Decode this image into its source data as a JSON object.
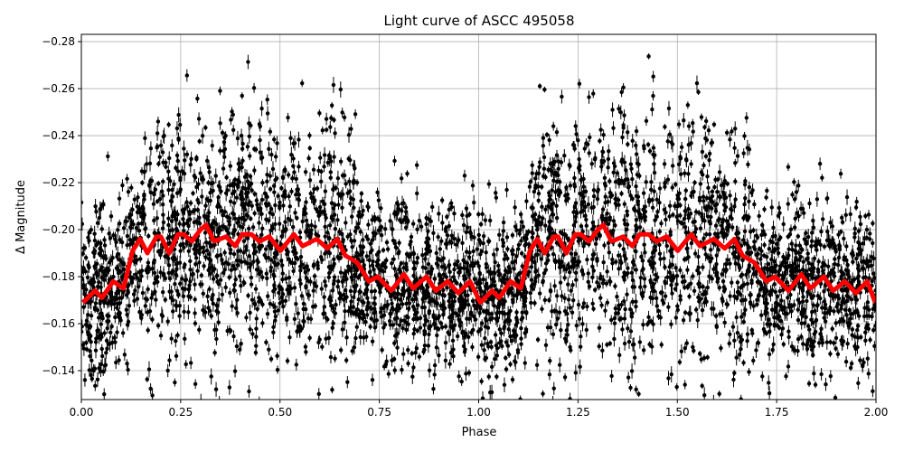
{
  "chart_data": {
    "type": "scatter",
    "title": "Light curve of ASCC 495058",
    "xlabel": "Phase",
    "ylabel": "Δ Magnitude",
    "xlim": [
      0.0,
      2.0
    ],
    "ylim": [
      -0.1277,
      -0.2831
    ],
    "y_inverted": true,
    "grid": true,
    "xticks": [
      "0.00",
      "0.25",
      "0.50",
      "0.75",
      "1.00",
      "1.25",
      "1.50",
      "1.75",
      "2.00"
    ],
    "xtick_values": [
      0,
      0.25,
      0.5,
      0.75,
      1,
      1.25,
      1.5,
      1.75,
      2
    ],
    "yticks": [
      "−0.28",
      "−0.26",
      "−0.24",
      "−0.22",
      "−0.20",
      "−0.18",
      "−0.16",
      "−0.14"
    ],
    "ytick_values": [
      -0.28,
      -0.26,
      -0.24,
      -0.22,
      -0.2,
      -0.18,
      -0.16,
      -0.14
    ],
    "scatter_color": "#000000",
    "series": [
      {
        "type": "line",
        "color": "#ff0000",
        "x": [
          0.004,
          0.034,
          0.052,
          0.08,
          0.106,
          0.129,
          0.148,
          0.166,
          0.189,
          0.2,
          0.221,
          0.243,
          0.257,
          0.278,
          0.3,
          0.314,
          0.334,
          0.364,
          0.387,
          0.405,
          0.428,
          0.448,
          0.473,
          0.501,
          0.535,
          0.557,
          0.592,
          0.619,
          0.644,
          0.664,
          0.694,
          0.724,
          0.746,
          0.78,
          0.812,
          0.835,
          0.869,
          0.892,
          0.922,
          0.949,
          0.978,
          1.004,
          1.034,
          1.052,
          1.08,
          1.106,
          1.129,
          1.148,
          1.166,
          1.189,
          1.2,
          1.221,
          1.243,
          1.257,
          1.278,
          1.3,
          1.314,
          1.334,
          1.364,
          1.387,
          1.405,
          1.428,
          1.448,
          1.473,
          1.501,
          1.535,
          1.557,
          1.592,
          1.619,
          1.644,
          1.664,
          1.694,
          1.724,
          1.746,
          1.78,
          1.812,
          1.835,
          1.869,
          1.892,
          1.922,
          1.949,
          1.978,
          1.998
        ],
        "y": [
          -0.169,
          -0.174,
          -0.171,
          -0.178,
          -0.175,
          -0.191,
          -0.196,
          -0.19,
          -0.197,
          -0.197,
          -0.19,
          -0.198,
          -0.198,
          -0.195,
          -0.2,
          -0.202,
          -0.195,
          -0.197,
          -0.193,
          -0.198,
          -0.198,
          -0.195,
          -0.197,
          -0.191,
          -0.198,
          -0.193,
          -0.196,
          -0.192,
          -0.196,
          -0.189,
          -0.186,
          -0.178,
          -0.18,
          -0.174,
          -0.181,
          -0.175,
          -0.18,
          -0.174,
          -0.178,
          -0.173,
          -0.178,
          -0.169,
          -0.174,
          -0.171,
          -0.178,
          -0.175,
          -0.191,
          -0.196,
          -0.19,
          -0.197,
          -0.197,
          -0.19,
          -0.198,
          -0.198,
          -0.195,
          -0.2,
          -0.202,
          -0.195,
          -0.197,
          -0.193,
          -0.198,
          -0.198,
          -0.195,
          -0.197,
          -0.191,
          -0.198,
          -0.193,
          -0.196,
          -0.192,
          -0.196,
          -0.189,
          -0.186,
          -0.178,
          -0.18,
          -0.174,
          -0.181,
          -0.175,
          -0.18,
          -0.174,
          -0.178,
          -0.173,
          -0.178,
          -0.169
        ]
      }
    ]
  }
}
